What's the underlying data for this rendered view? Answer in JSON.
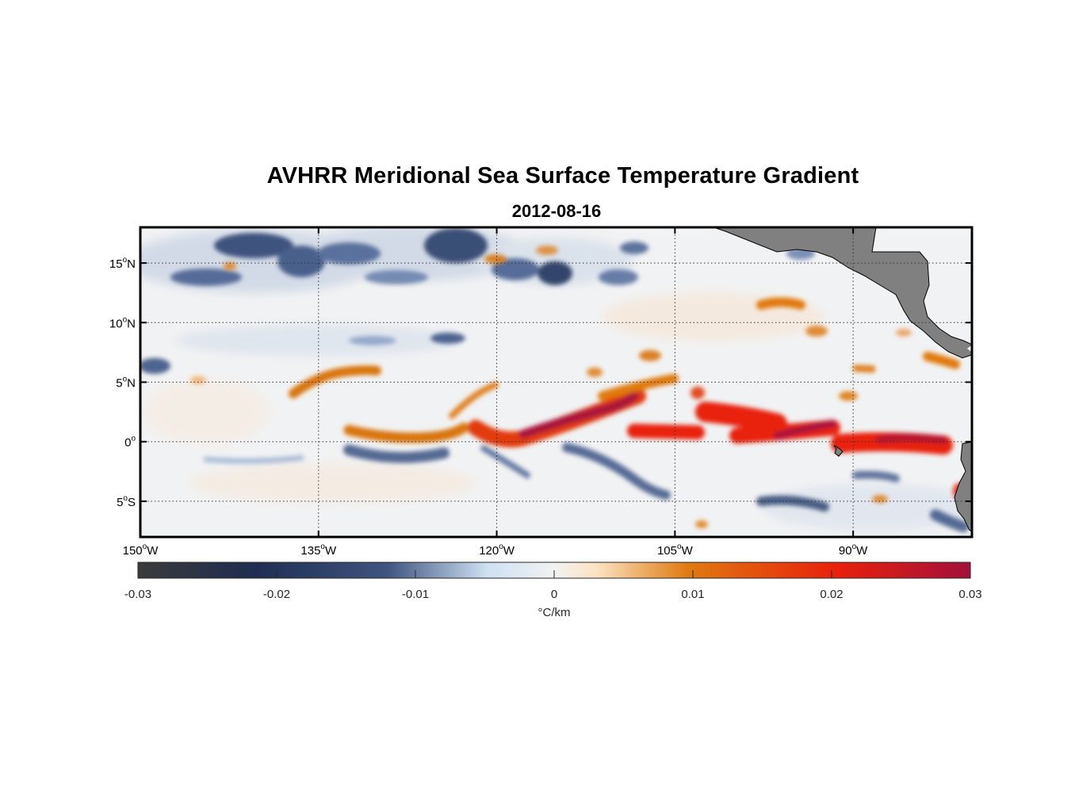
{
  "title": "AVHRR Meridional Sea Surface Temperature Gradient",
  "subtitle": "2012-08-16",
  "map": {
    "lon_range": [
      -150,
      -80
    ],
    "lat_range": [
      -8,
      18
    ],
    "lon_ticks": [
      {
        "value": -150,
        "deg": "150",
        "suffix": "W"
      },
      {
        "value": -135,
        "deg": "135",
        "suffix": "W"
      },
      {
        "value": -120,
        "deg": "120",
        "suffix": "W"
      },
      {
        "value": -105,
        "deg": "105",
        "suffix": "W"
      },
      {
        "value": -90,
        "deg": "90",
        "suffix": "W"
      }
    ],
    "lat_ticks": [
      {
        "value": 15,
        "deg": "15",
        "suffix": "N"
      },
      {
        "value": 10,
        "deg": "10",
        "suffix": "N"
      },
      {
        "value": 5,
        "deg": "5",
        "suffix": "N"
      },
      {
        "value": 0,
        "deg": "0",
        "suffix": ""
      },
      {
        "value": -5,
        "deg": "5",
        "suffix": "S"
      }
    ],
    "grid": "dotted",
    "land_color": "#808080"
  },
  "colorbar": {
    "min": -0.03,
    "max": 0.03,
    "ticks": [
      "-0.03",
      "-0.02",
      "-0.01",
      "0",
      "0.01",
      "0.02",
      "0.03"
    ],
    "unit": "°C/km",
    "colors": [
      "#3b3b3b",
      "#1f2d52",
      "#3f5580",
      "#cfe0f2",
      "#f2f2f2",
      "#fbe3c3",
      "#e07a10",
      "#e8200c",
      "#a3103a"
    ]
  }
}
